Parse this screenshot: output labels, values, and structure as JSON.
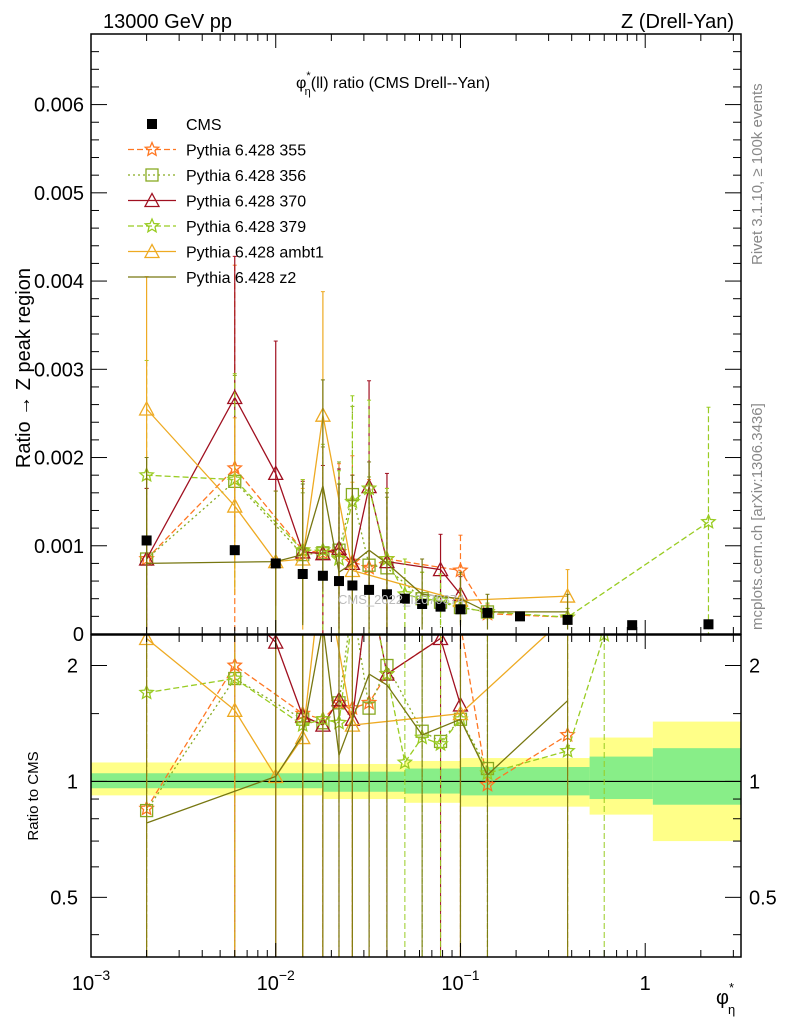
{
  "header": {
    "left": "13000 GeV pp",
    "right": "Z (Drell-Yan)"
  },
  "side_labels": {
    "rivet": "Rivet 3.1.10, ≥ 100k events",
    "mcplots": "mcplots.cern.ch [arXiv:1306.3436]"
  },
  "watermark": "CMS_2022_I2079374",
  "chart_data": [
    {
      "type": "line",
      "panel": "main",
      "title": "φ*η(ll) ratio (CMS Drell--Yan)",
      "title_parts": {
        "base": "φ",
        "sup": "*",
        "sub": "η",
        "rest": "(ll) ratio (CMS Drell--Yan)"
      },
      "ylabel": "Ratio → Z peak region",
      "xscale": "log",
      "xlim": [
        0.001,
        3.3
      ],
      "ylim": [
        0,
        0.0068
      ],
      "yticks": [
        0,
        0.001,
        0.002,
        0.003,
        0.004,
        0.005,
        0.006
      ],
      "ytick_labels": [
        "0",
        "0.001",
        "0.002",
        "0.003",
        "0.004",
        "0.005",
        "0.006"
      ],
      "legend_position": "top-left",
      "series": [
        {
          "name": "CMS",
          "color": "#000000",
          "marker": "square",
          "style": "points",
          "x": [
            0.002,
            0.006,
            0.01,
            0.014,
            0.018,
            0.022,
            0.026,
            0.032,
            0.04,
            0.05,
            0.062,
            0.078,
            0.1,
            0.14,
            0.21,
            0.38,
            0.85,
            2.2
          ],
          "y": [
            0.00106,
            0.00095,
            0.0008,
            0.00068,
            0.00066,
            0.0006,
            0.00055,
            0.0005,
            0.00045,
            0.0004,
            0.00034,
            0.00031,
            0.00028,
            0.00024,
            0.0002,
            0.00016,
            0.0001,
            0.00011
          ]
        },
        {
          "name": "Pythia 6.428 355",
          "color": "#ff7722",
          "marker": "star",
          "style": "dashed",
          "x": [
            0.002,
            0.006,
            0.014,
            0.018,
            0.022,
            0.026,
            0.032,
            0.04,
            0.1,
            0.14,
            0.38
          ],
          "y": [
            0.00085,
            0.00188,
            0.00095,
            0.00092,
            0.00093,
            0.00082,
            0.00075,
            0.00085,
            0.00072,
            0.00023,
            0.00019
          ],
          "err": [
            0.0009,
            0.0023,
            0.0008,
            0.0012,
            0.001,
            0.0012,
            0.001,
            0.0008,
            0.0004,
            0.0001,
            0.0001
          ]
        },
        {
          "name": "Pythia 6.428 356",
          "color": "#88aa22",
          "marker": "open-square",
          "style": "dotted",
          "x": [
            0.002,
            0.006,
            0.014,
            0.018,
            0.022,
            0.026,
            0.032,
            0.04,
            0.062,
            0.078,
            0.1,
            0.14
          ],
          "y": [
            0.00085,
            0.00173,
            0.0009,
            0.00092,
            0.00095,
            0.00158,
            0.00078,
            0.00075,
            0.0004,
            0.00036,
            0.0003,
            0.00025
          ],
          "err": [
            0.0008,
            0.0012,
            0.0007,
            0.0012,
            0.001,
            0.001,
            0.001,
            0.0008,
            0.0003,
            0.0003,
            0.0002,
            0.0001
          ]
        },
        {
          "name": "Pythia 6.428 370",
          "color": "#a01020",
          "marker": "open-triangle",
          "style": "solid",
          "x": [
            0.002,
            0.006,
            0.01,
            0.014,
            0.018,
            0.022,
            0.026,
            0.032,
            0.04,
            0.078,
            0.1
          ],
          "y": [
            0.00085,
            0.00268,
            0.00182,
            0.00093,
            0.00091,
            0.00097,
            0.0008,
            0.00167,
            0.00082,
            0.00073,
            0.00045
          ],
          "err": [
            0.0008,
            0.0016,
            0.0015,
            0.0008,
            0.001,
            0.0009,
            0.001,
            0.0012,
            0.001,
            0.0004,
            0.0002
          ]
        },
        {
          "name": "Pythia 6.428 379",
          "color": "#99cc22",
          "marker": "star",
          "style": "dashed",
          "x": [
            0.002,
            0.006,
            0.014,
            0.018,
            0.022,
            0.026,
            0.032,
            0.04,
            0.05,
            0.062,
            0.078,
            0.1,
            0.14,
            0.38,
            2.2
          ],
          "y": [
            0.0018,
            0.00175,
            0.00095,
            0.00095,
            0.00085,
            0.0015,
            0.00165,
            0.00085,
            0.00045,
            0.0004,
            0.00038,
            0.0003,
            0.00025,
            0.00019,
            0.00127
          ],
          "err": [
            0.0013,
            0.0012,
            0.0008,
            0.0012,
            0.001,
            0.0012,
            0.001,
            0.0008,
            0.0004,
            0.0003,
            0.0003,
            0.0002,
            0.0001,
            0.0001,
            0.0013
          ]
        },
        {
          "name": "Pythia 6.428 ambt1",
          "color": "#eeaa22",
          "marker": "open-triangle",
          "style": "solid",
          "x": [
            0.002,
            0.006,
            0.01,
            0.014,
            0.018,
            0.026,
            0.1,
            0.38
          ],
          "y": [
            0.00255,
            0.00145,
            0.00082,
            0.00085,
            0.00248,
            0.00072,
            0.00038,
            0.00043
          ],
          "err": [
            0.0015,
            0.001,
            0.0008,
            0.0008,
            0.0014,
            0.001,
            0.0003,
            0.0003
          ]
        },
        {
          "name": "Pythia 6.428 z2",
          "color": "#777711",
          "marker": "none",
          "style": "solid",
          "x": [
            0.002,
            0.01,
            0.014,
            0.018,
            0.022,
            0.026,
            0.032,
            0.04,
            0.062,
            0.1,
            0.14,
            0.38
          ],
          "y": [
            0.0008,
            0.00082,
            0.0009,
            0.00168,
            0.0007,
            0.0008,
            0.00095,
            0.0008,
            0.00045,
            0.0004,
            0.00025,
            0.00025
          ],
          "err": [
            0.0012,
            0.0008,
            0.0008,
            0.0012,
            0.001,
            0.001,
            0.001,
            0.0008,
            0.0004,
            0.0003,
            0.0002,
            0.0002
          ]
        }
      ]
    },
    {
      "type": "line",
      "panel": "ratio",
      "ylabel": "Ratio to CMS",
      "xlabel": "φ*η",
      "xlabel_parts": {
        "base": "φ",
        "sup": "*",
        "sub": "η"
      },
      "xscale": "log",
      "yscale": "log",
      "xlim": [
        0.001,
        3.3
      ],
      "ylim": [
        0.35,
        2.4
      ],
      "yticks": [
        0.5,
        1,
        2
      ],
      "ytick_labels": [
        "0.5",
        "1",
        "2"
      ],
      "xticks": [
        0.001,
        0.01,
        0.1,
        1
      ],
      "xtick_labels": [
        {
          "base": "10",
          "exp": "−3"
        },
        {
          "base": "10",
          "exp": "−2"
        },
        {
          "base": "10",
          "exp": "−1"
        },
        {
          "base": "1",
          "exp": ""
        }
      ],
      "bands": {
        "x_edges": [
          0.001,
          0.018,
          0.05,
          0.1,
          0.5,
          1.1,
          3.3
        ],
        "yellow": [
          [
            0.92,
            1.12
          ],
          [
            0.9,
            1.11
          ],
          [
            0.88,
            1.13
          ],
          [
            0.86,
            1.15
          ],
          [
            0.82,
            1.3
          ],
          [
            0.7,
            1.43
          ]
        ],
        "green": [
          [
            0.96,
            1.05
          ],
          [
            0.94,
            1.06
          ],
          [
            0.93,
            1.08
          ],
          [
            0.92,
            1.09
          ],
          [
            0.9,
            1.16
          ],
          [
            0.87,
            1.22
          ]
        ]
      },
      "series": [
        {
          "name": "Pythia 6.428 355",
          "color": "#ff7722",
          "marker": "star",
          "style": "dashed",
          "x": [
            0.002,
            0.006,
            0.014,
            0.018,
            0.022,
            0.026,
            0.032,
            0.04,
            0.1,
            0.14,
            0.38
          ],
          "y": [
            0.85,
            2.0,
            1.5,
            1.45,
            1.6,
            1.55,
            1.6,
            1.9,
            2.55,
            0.98,
            1.32
          ]
        },
        {
          "name": "Pythia 6.428 356",
          "color": "#88aa22",
          "marker": "open-square",
          "style": "dotted",
          "x": [
            0.002,
            0.006,
            0.014,
            0.018,
            0.022,
            0.026,
            0.032,
            0.04,
            0.062,
            0.078,
            0.1,
            0.14
          ],
          "y": [
            0.84,
            1.85,
            1.45,
            1.42,
            1.6,
            2.9,
            1.55,
            2.0,
            1.35,
            1.27,
            1.45,
            1.08
          ]
        },
        {
          "name": "Pythia 6.428 370",
          "color": "#a01020",
          "marker": "open-triangle",
          "style": "solid",
          "x": [
            0.006,
            0.01,
            0.014,
            0.018,
            0.022,
            0.026,
            0.032,
            0.04,
            0.078,
            0.1
          ],
          "y": [
            2.9,
            2.3,
            1.48,
            1.4,
            1.63,
            1.45,
            3.3,
            1.9,
            2.35,
            1.58
          ]
        },
        {
          "name": "Pythia 6.428 379",
          "color": "#99cc22",
          "marker": "star",
          "style": "dashed",
          "x": [
            0.002,
            0.006,
            0.014,
            0.018,
            0.022,
            0.026,
            0.032,
            0.04,
            0.05,
            0.062,
            0.078,
            0.1,
            0.14,
            0.38,
            0.6
          ],
          "y": [
            1.7,
            1.85,
            1.4,
            1.45,
            1.42,
            2.7,
            3.3,
            1.9,
            1.12,
            1.3,
            1.25,
            1.45,
            1.05,
            1.2,
            2.4
          ]
        },
        {
          "name": "Pythia 6.428 ambt1",
          "color": "#eeaa22",
          "marker": "open-triangle",
          "style": "solid",
          "x": [
            0.002,
            0.006,
            0.01,
            0.014,
            0.018,
            0.026,
            0.1,
            0.38
          ],
          "y": [
            2.35,
            1.53,
            1.03,
            1.3,
            3.75,
            1.4,
            1.5,
            2.7
          ]
        },
        {
          "name": "Pythia 6.428 z2",
          "color": "#777711",
          "marker": "none",
          "style": "solid",
          "x": [
            0.002,
            0.01,
            0.014,
            0.018,
            0.022,
            0.026,
            0.032,
            0.04,
            0.062,
            0.1,
            0.14,
            0.38
          ],
          "y": [
            0.78,
            1.03,
            1.32,
            2.55,
            1.17,
            1.45,
            1.9,
            1.78,
            1.32,
            1.45,
            1.04,
            1.62
          ]
        }
      ]
    }
  ]
}
